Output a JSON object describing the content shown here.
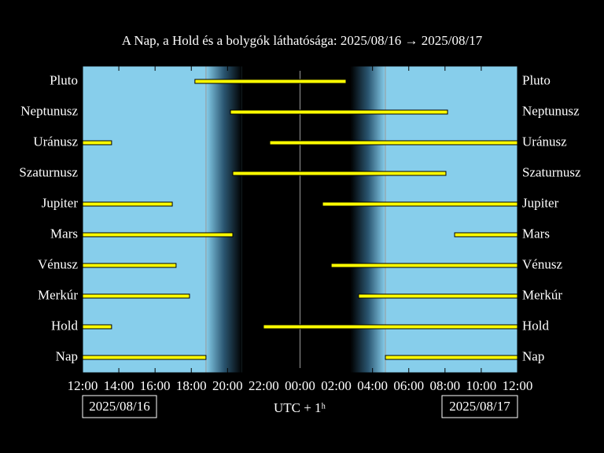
{
  "chart_data": {
    "type": "visibility",
    "title": "A Nap, a Hold és a bolygók láthatósága: 2025/08/16 → 2025/08/17",
    "xlabel": "UTC + 1ʰ",
    "start_date": "2025/08/16",
    "end_date": "2025/08/17",
    "categories": [
      "Pluto",
      "Neptunusz",
      "Uránusz",
      "Szaturnusz",
      "Jupiter",
      "Mars",
      "Vénusz",
      "Merkúr",
      "Hold",
      "Nap"
    ],
    "intervals": [
      [
        [
          6.2,
          14.54
        ]
      ],
      [
        [
          8.16,
          20.14
        ]
      ],
      [
        [
          0,
          1.6
        ],
        [
          10.33,
          24
        ]
      ],
      [
        [
          8.29,
          20.05
        ]
      ],
      [
        [
          0,
          4.95
        ],
        [
          13.24,
          24
        ]
      ],
      [
        [
          0,
          8.29
        ],
        [
          20.53,
          24
        ]
      ],
      [
        [
          0,
          5.16
        ],
        [
          13.72,
          24
        ]
      ],
      [
        [
          0,
          5.9
        ],
        [
          15.23,
          24
        ]
      ],
      [
        [
          0,
          1.6
        ],
        [
          9.98,
          24
        ]
      ],
      [
        [
          0,
          6.81
        ],
        [
          16.71,
          24
        ]
      ]
    ],
    "twilight": [
      6.81,
      8.8,
      14.8,
      16.71
    ],
    "vlines": [
      6.81,
      12,
      16.71
    ],
    "xlim": [
      0,
      24
    ],
    "xticks": [
      {
        "value": 0,
        "label": "12:00"
      },
      {
        "value": 2,
        "label": "14:00"
      },
      {
        "value": 4,
        "label": "16:00"
      },
      {
        "value": 6,
        "label": "18:00"
      },
      {
        "value": 8,
        "label": "20:00"
      },
      {
        "value": 10,
        "label": "22:00"
      },
      {
        "value": 12,
        "label": "00:00"
      },
      {
        "value": 14,
        "label": "02:00"
      },
      {
        "value": 16,
        "label": "04:00"
      },
      {
        "value": 18,
        "label": "06:00"
      },
      {
        "value": 20,
        "label": "08:00"
      },
      {
        "value": 22,
        "label": "10:00"
      },
      {
        "value": 24,
        "label": "12:00"
      }
    ],
    "sky_color": "#87ceeb",
    "bar_color": "#ffff00"
  }
}
